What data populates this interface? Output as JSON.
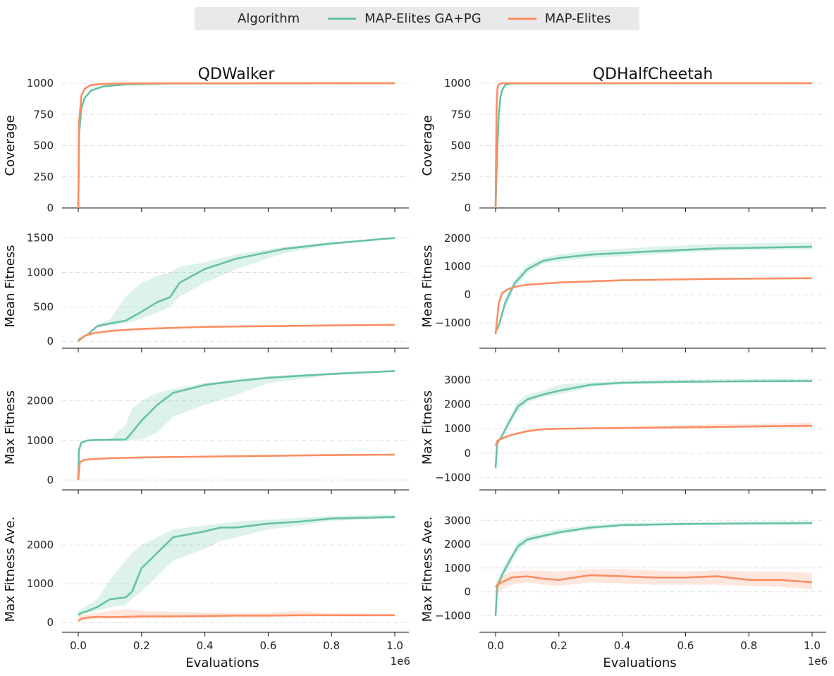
{
  "legend": {
    "title": "Algorithm",
    "items": [
      {
        "label": "MAP-Elites GA+PG",
        "color": "#66c2a5"
      },
      {
        "label": "MAP-Elites",
        "color": "#fc8d62"
      }
    ]
  },
  "colors": {
    "ga_pg": "#66c2a5",
    "me": "#fc8d62"
  },
  "columns": [
    "QDWalker",
    "QDHalfCheetah"
  ],
  "xlabel": "Evaluations",
  "xscale_label": "1e6",
  "xticks": [
    "0.0",
    "0.2",
    "0.4",
    "0.6",
    "0.8",
    "1.0"
  ],
  "chart_data": [
    {
      "type": "line",
      "title": "QDWalker",
      "ylabel": "Coverage",
      "xlim": [
        0,
        1000000
      ],
      "ylim": [
        0,
        1000
      ],
      "yticks": [
        0,
        250,
        500,
        750,
        1000
      ],
      "grid": true,
      "series": [
        {
          "name": "MAP-Elites GA+PG",
          "x": [
            0,
            3000,
            10000,
            20000,
            40000,
            80000,
            150000,
            300000,
            1000000
          ],
          "y": [
            0,
            600,
            800,
            880,
            940,
            975,
            990,
            997,
            1000
          ]
        },
        {
          "name": "MAP-Elites",
          "x": [
            0,
            3000,
            10000,
            20000,
            40000,
            80000,
            150000,
            1000000
          ],
          "y": [
            0,
            700,
            900,
            955,
            985,
            995,
            998,
            1000
          ]
        }
      ]
    },
    {
      "type": "line",
      "title": "QDHalfCheetah",
      "ylabel": "Coverage",
      "xlim": [
        0,
        1000000
      ],
      "ylim": [
        0,
        1000
      ],
      "yticks": [
        0,
        250,
        500,
        750,
        1000
      ],
      "grid": true,
      "series": [
        {
          "name": "MAP-Elites GA+PG",
          "x": [
            0,
            5000,
            10000,
            15000,
            20000,
            30000,
            50000,
            1000000
          ],
          "y": [
            0,
            450,
            750,
            880,
            940,
            985,
            998,
            1000
          ]
        },
        {
          "name": "MAP-Elites",
          "x": [
            0,
            3000,
            6000,
            10000,
            20000,
            1000000
          ],
          "y": [
            0,
            800,
            960,
            990,
            1000,
            1000
          ]
        }
      ]
    },
    {
      "type": "line",
      "ylabel": "Mean Fitness",
      "xlim": [
        0,
        1000000
      ],
      "ylim": [
        -100,
        1700
      ],
      "yticks": [
        0,
        500,
        1000,
        1500
      ],
      "grid": true,
      "series": [
        {
          "name": "MAP-Elites GA+PG",
          "x": [
            0,
            30000,
            60000,
            100000,
            150000,
            200000,
            250000,
            290000,
            320000,
            400000,
            500000,
            650000,
            800000,
            1000000
          ],
          "y": [
            20,
            100,
            220,
            260,
            300,
            430,
            570,
            640,
            850,
            1050,
            1200,
            1340,
            1420,
            1500
          ],
          "lower": [
            20,
            90,
            200,
            230,
            260,
            330,
            420,
            500,
            650,
            850,
            1050,
            1280,
            1400,
            1490
          ],
          "upper": [
            20,
            110,
            240,
            320,
            650,
            850,
            950,
            1000,
            1080,
            1150,
            1260,
            1370,
            1440,
            1510
          ]
        },
        {
          "name": "MAP-Elites",
          "x": [
            0,
            20000,
            50000,
            100000,
            200000,
            400000,
            600000,
            800000,
            1000000
          ],
          "y": [
            0,
            80,
            120,
            150,
            180,
            210,
            220,
            230,
            240
          ],
          "lower": [
            0,
            75,
            115,
            145,
            175,
            205,
            215,
            225,
            235
          ],
          "upper": [
            0,
            85,
            125,
            155,
            185,
            215,
            225,
            235,
            245
          ]
        }
      ]
    },
    {
      "type": "line",
      "ylabel": "Mean Fitness",
      "xlim": [
        0,
        1000000
      ],
      "ylim": [
        -1900,
        2500
      ],
      "yticks": [
        -1000,
        0,
        1000,
        2000
      ],
      "grid": true,
      "series": [
        {
          "name": "MAP-Elites GA+PG",
          "x": [
            0,
            10000,
            30000,
            60000,
            100000,
            150000,
            200000,
            300000,
            500000,
            700000,
            1000000
          ],
          "y": [
            -1300,
            -1100,
            -300,
            400,
            900,
            1200,
            1300,
            1420,
            1540,
            1640,
            1700
          ],
          "lower": [
            -1300,
            -1150,
            -450,
            250,
            750,
            1100,
            1180,
            1300,
            1430,
            1560,
            1600
          ],
          "upper": [
            -1300,
            -1050,
            -150,
            550,
            1050,
            1300,
            1430,
            1560,
            1700,
            1800,
            1850
          ]
        },
        {
          "name": "MAP-Elites",
          "x": [
            0,
            10000,
            20000,
            40000,
            70000,
            100000,
            200000,
            400000,
            700000,
            1000000
          ],
          "y": [
            -1400,
            -300,
            50,
            200,
            300,
            350,
            430,
            510,
            560,
            580
          ],
          "lower": [
            -1400,
            -350,
            20,
            170,
            280,
            330,
            410,
            490,
            540,
            550
          ],
          "upper": [
            -1400,
            -250,
            80,
            230,
            320,
            370,
            450,
            530,
            580,
            610
          ]
        }
      ]
    },
    {
      "type": "line",
      "ylabel": "Max Fitness",
      "xlim": [
        0,
        1000000
      ],
      "ylim": [
        -250,
        2900
      ],
      "yticks": [
        0,
        1000,
        2000
      ],
      "grid": true,
      "series": [
        {
          "name": "MAP-Elites GA+PG",
          "x": [
            0,
            2000,
            10000,
            30000,
            60000,
            100000,
            150000,
            170000,
            200000,
            250000,
            300000,
            400000,
            500000,
            600000,
            800000,
            1000000
          ],
          "y": [
            0,
            750,
            950,
            1000,
            1010,
            1015,
            1020,
            1200,
            1500,
            1900,
            2200,
            2400,
            2500,
            2580,
            2680,
            2750
          ],
          "lower": [
            0,
            700,
            940,
            990,
            1000,
            1005,
            1010,
            1015,
            1020,
            1200,
            1600,
            1900,
            2150,
            2450,
            2640,
            2730
          ],
          "upper": [
            0,
            800,
            960,
            1010,
            1015,
            1030,
            1400,
            1800,
            2000,
            2200,
            2300,
            2450,
            2550,
            2620,
            2710,
            2770
          ]
        },
        {
          "name": "MAP-Elites",
          "x": [
            0,
            5000,
            20000,
            50000,
            100000,
            200000,
            400000,
            600000,
            800000,
            1000000
          ],
          "y": [
            0,
            450,
            510,
            530,
            550,
            570,
            590,
            610,
            630,
            640
          ],
          "lower": [
            0,
            440,
            500,
            520,
            540,
            560,
            580,
            600,
            620,
            630
          ],
          "upper": [
            0,
            460,
            520,
            540,
            560,
            580,
            600,
            620,
            640,
            650
          ]
        }
      ]
    },
    {
      "type": "line",
      "ylabel": "Max Fitness",
      "xlim": [
        0,
        1000000
      ],
      "ylim": [
        -1500,
        3600
      ],
      "yticks": [
        -1000,
        0,
        1000,
        2000,
        3000
      ],
      "grid": true,
      "series": [
        {
          "name": "MAP-Elites GA+PG",
          "x": [
            0,
            5000,
            20000,
            40000,
            70000,
            100000,
            150000,
            200000,
            300000,
            400000,
            600000,
            800000,
            1000000
          ],
          "y": [
            -600,
            400,
            700,
            1200,
            1900,
            2200,
            2400,
            2550,
            2800,
            2880,
            2920,
            2940,
            2950
          ],
          "lower": [
            -600,
            300,
            600,
            1100,
            1700,
            2050,
            2300,
            2400,
            2700,
            2820,
            2880,
            2900,
            2910
          ],
          "upper": [
            -600,
            500,
            800,
            1400,
            2100,
            2400,
            2550,
            2800,
            2900,
            2950,
            3000,
            3020,
            3050
          ]
        },
        {
          "name": "MAP-Elites",
          "x": [
            0,
            5000,
            20000,
            50000,
            100000,
            150000,
            200000,
            400000,
            600000,
            800000,
            1000000
          ],
          "y": [
            300,
            500,
            600,
            750,
            900,
            980,
            1000,
            1030,
            1060,
            1090,
            1120
          ],
          "lower": [
            300,
            450,
            560,
            720,
            870,
            950,
            980,
            1000,
            1020,
            1040,
            1060
          ],
          "upper": [
            300,
            550,
            640,
            780,
            930,
            1010,
            1030,
            1080,
            1150,
            1200,
            1250
          ]
        }
      ]
    },
    {
      "type": "line",
      "ylabel": "Max Fitness Ave.",
      "xlim": [
        0,
        1000000
      ],
      "ylim": [
        -250,
        3000
      ],
      "yticks": [
        0,
        1000,
        2000
      ],
      "grid": true,
      "series": [
        {
          "name": "MAP-Elites GA+PG",
          "x": [
            0,
            10000,
            30000,
            60000,
            100000,
            150000,
            170000,
            200000,
            250000,
            300000,
            400000,
            450000,
            500000,
            600000,
            700000,
            800000,
            1000000
          ],
          "y": [
            200,
            250,
            300,
            400,
            600,
            650,
            800,
            1400,
            1800,
            2200,
            2350,
            2450,
            2450,
            2550,
            2600,
            2680,
            2720
          ],
          "lower": [
            150,
            200,
            250,
            300,
            400,
            450,
            600,
            800,
            1200,
            1600,
            1900,
            2100,
            2200,
            2400,
            2500,
            2620,
            2680
          ],
          "upper": [
            300,
            350,
            450,
            600,
            1100,
            1600,
            1800,
            2000,
            2200,
            2400,
            2500,
            2550,
            2600,
            2650,
            2700,
            2750,
            2780
          ]
        },
        {
          "name": "MAP-Elites",
          "x": [
            0,
            10000,
            30000,
            60000,
            100000,
            150000,
            200000,
            300000,
            400000,
            500000,
            600000,
            700000,
            800000,
            1000000
          ],
          "y": [
            50,
            100,
            130,
            150,
            140,
            150,
            160,
            160,
            170,
            180,
            180,
            190,
            190,
            190
          ],
          "lower": [
            0,
            50,
            80,
            100,
            100,
            100,
            110,
            120,
            130,
            140,
            150,
            160,
            170,
            170
          ],
          "upper": [
            150,
            200,
            220,
            250,
            300,
            350,
            300,
            280,
            260,
            250,
            260,
            300,
            240,
            220
          ]
        }
      ]
    },
    {
      "type": "line",
      "ylabel": "Max Fitness Ave.",
      "xlim": [
        0,
        1000000
      ],
      "ylim": [
        -1700,
        3600
      ],
      "yticks": [
        -1000,
        0,
        1000,
        2000,
        3000
      ],
      "grid": true,
      "series": [
        {
          "name": "MAP-Elites GA+PG",
          "x": [
            0,
            5000,
            20000,
            40000,
            70000,
            100000,
            150000,
            200000,
            300000,
            400000,
            600000,
            800000,
            1000000
          ],
          "y": [
            -1000,
            200,
            700,
            1200,
            1900,
            2200,
            2350,
            2500,
            2700,
            2800,
            2850,
            2870,
            2880
          ],
          "lower": [
            -1100,
            0,
            500,
            1000,
            1700,
            2050,
            2250,
            2400,
            2600,
            2750,
            2800,
            2830,
            2850
          ],
          "upper": [
            -900,
            400,
            900,
            1400,
            2100,
            2350,
            2500,
            2650,
            2800,
            2900,
            2920,
            2950,
            2970
          ]
        },
        {
          "name": "MAP-Elites",
          "x": [
            0,
            5000,
            20000,
            50000,
            100000,
            150000,
            200000,
            300000,
            400000,
            500000,
            600000,
            700000,
            800000,
            900000,
            1000000
          ],
          "y": [
            200,
            300,
            400,
            600,
            650,
            550,
            500,
            700,
            650,
            600,
            600,
            650,
            500,
            500,
            400
          ],
          "lower": [
            -200,
            -100,
            100,
            300,
            400,
            300,
            250,
            400,
            350,
            300,
            300,
            300,
            250,
            200,
            100
          ],
          "upper": [
            400,
            500,
            650,
            850,
            900,
            900,
            850,
            950,
            950,
            900,
            850,
            900,
            850,
            850,
            800
          ]
        }
      ]
    }
  ]
}
